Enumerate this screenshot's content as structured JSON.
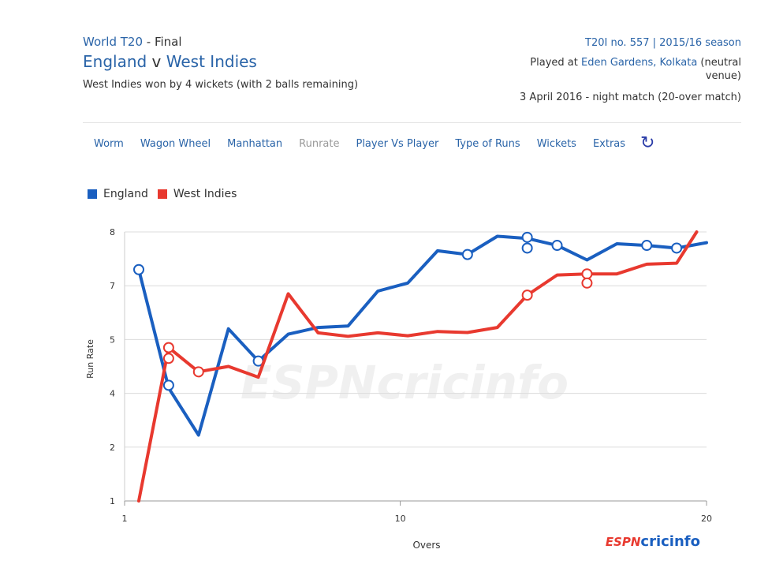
{
  "header": {
    "series_link": "World T20",
    "series_suffix": " - Final",
    "team1": "England",
    "vs": " v ",
    "team2": "West Indies",
    "result": "West Indies won by 4 wickets (with 2 balls remaining)",
    "t20i": "T20I no. 557 | 2015/16 season",
    "played_at": "Played at ",
    "venue": "Eden Gardens, Kolkata",
    "neutral": " (neutral venue)",
    "date": "3 April 2016 - night match (20-over match)"
  },
  "nav": {
    "tabs": [
      "Worm",
      "Wagon Wheel",
      "Manhattan",
      "Runrate",
      "Player Vs Player",
      "Type of Runs",
      "Wickets",
      "Extras"
    ],
    "active": "Runrate",
    "refresh_icon": "refresh-icon"
  },
  "watermark": "ESPNcricinfo",
  "logo": {
    "espn": "ESPN",
    "cricinfo": "cricinfo"
  },
  "chart_data": {
    "type": "line",
    "xlabel": "Overs",
    "ylabel": "Run Rate",
    "xlim": [
      1,
      20
    ],
    "ylim": [
      1,
      8
    ],
    "xticks": [
      1,
      10,
      20
    ],
    "ytick_labels": [
      "1",
      "2",
      "4",
      "5",
      "7",
      "8"
    ],
    "grid": true,
    "legend_position": "top-left",
    "series": [
      {
        "name": "England",
        "color": "#1a5fc0",
        "x": [
          1,
          2,
          3,
          4,
          5,
          6,
          7,
          8,
          9,
          10,
          11,
          12,
          13,
          14,
          15,
          16,
          17,
          18,
          19,
          20
        ],
        "y": [
          7.3,
          4.1,
          2.45,
          5.4,
          4.6,
          5.2,
          5.45,
          5.5,
          6.8,
          7.05,
          7.65,
          7.58,
          7.92,
          7.88,
          7.75,
          7.48,
          7.78,
          7.75,
          7.7,
          7.8
        ],
        "wickets": [
          [
            1,
            7.3
          ],
          [
            2,
            4.15
          ],
          [
            5,
            4.6
          ],
          [
            12,
            7.58
          ],
          [
            14,
            7.9
          ],
          [
            14,
            7.7
          ],
          [
            15,
            7.75
          ],
          [
            18,
            7.75
          ],
          [
            19,
            7.7
          ]
        ]
      },
      {
        "name": "West Indies",
        "color": "#e8392f",
        "x": [
          1,
          2,
          3,
          4,
          5,
          6,
          7,
          8,
          9,
          10,
          11,
          12,
          13,
          14,
          15,
          16,
          17,
          18,
          19,
          19.67
        ],
        "y": [
          1.0,
          4.85,
          4.4,
          4.5,
          4.3,
          6.7,
          5.25,
          5.12,
          5.25,
          5.14,
          5.3,
          5.26,
          5.45,
          6.65,
          7.2,
          7.22,
          7.22,
          7.4,
          7.42,
          8.0
        ],
        "wickets": [
          [
            2,
            4.85
          ],
          [
            2,
            4.65
          ],
          [
            3,
            4.4
          ],
          [
            14,
            6.65
          ],
          [
            16,
            7.22
          ],
          [
            16,
            7.05
          ]
        ]
      }
    ]
  }
}
